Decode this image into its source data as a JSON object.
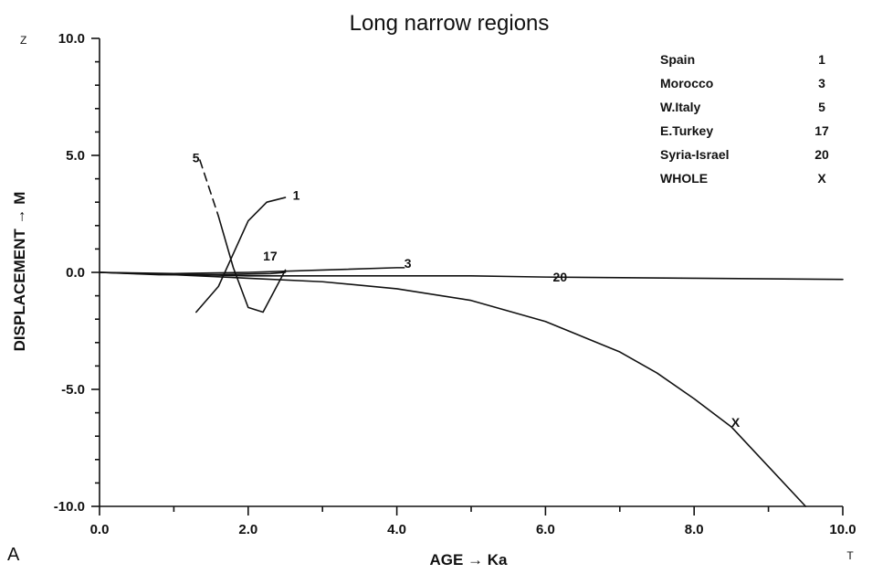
{
  "panel_label": "A",
  "corner_labels": {
    "y": "Z",
    "x": "T"
  },
  "chart_data": {
    "type": "line",
    "title": "Long narrow regions",
    "xlabel": "AGE → Ka",
    "ylabel": "DISPLACEMENT → M",
    "xlim": [
      0,
      10
    ],
    "ylim": [
      -10,
      10
    ],
    "x_ticks": [
      0,
      2,
      4,
      6,
      8,
      10
    ],
    "x_tick_labels": [
      "0.0",
      "2.0",
      "4.0",
      "6.0",
      "8.0",
      "10.0"
    ],
    "y_ticks": [
      -10,
      -5,
      0,
      5,
      10
    ],
    "y_tick_labels": [
      "-10.0",
      "-5.0",
      "0.0",
      "5.0",
      "10.0"
    ],
    "grid": false,
    "legend": {
      "placement": "top-right",
      "entries": [
        {
          "name": "Spain",
          "key": "1"
        },
        {
          "name": "Morocco",
          "key": "3"
        },
        {
          "name": "W.Italy",
          "key": "5"
        },
        {
          "name": "E.Turkey",
          "key": "17"
        },
        {
          "name": "Syria-Israel",
          "key": "20"
        },
        {
          "name": "WHOLE",
          "key": "X"
        }
      ]
    },
    "series": [
      {
        "label": "1",
        "dashed_until": 0,
        "points": [
          [
            1.3,
            -1.7
          ],
          [
            1.6,
            -0.6
          ],
          [
            1.8,
            0.8
          ],
          [
            2.0,
            2.2
          ],
          [
            2.25,
            3.0
          ],
          [
            2.5,
            3.2
          ]
        ]
      },
      {
        "label": "3",
        "points": [
          [
            0,
            0
          ],
          [
            1,
            -0.05
          ],
          [
            2,
            0.0
          ],
          [
            3,
            0.1
          ],
          [
            4,
            0.2
          ],
          [
            4.1,
            0.2
          ]
        ]
      },
      {
        "label": "5",
        "dashed_until": 1,
        "points": [
          [
            1.35,
            4.8
          ],
          [
            1.6,
            2.4
          ],
          [
            1.8,
            0.2
          ],
          [
            2.0,
            -1.5
          ],
          [
            2.2,
            -1.7
          ],
          [
            2.5,
            0.1
          ]
        ]
      },
      {
        "label": "17",
        "points": [
          [
            0,
            0
          ],
          [
            0.8,
            -0.1
          ],
          [
            1.6,
            -0.1
          ],
          [
            2.3,
            -0.05
          ],
          [
            2.5,
            0.0
          ]
        ]
      },
      {
        "label": "20",
        "points": [
          [
            0,
            0
          ],
          [
            2,
            -0.15
          ],
          [
            4,
            -0.15
          ],
          [
            5,
            -0.15
          ],
          [
            6,
            -0.2
          ],
          [
            8,
            -0.25
          ],
          [
            10,
            -0.3
          ]
        ]
      },
      {
        "label": "X",
        "points": [
          [
            0,
            0
          ],
          [
            1,
            -0.1
          ],
          [
            2,
            -0.25
          ],
          [
            3,
            -0.4
          ],
          [
            4,
            -0.7
          ],
          [
            5,
            -1.2
          ],
          [
            6,
            -2.1
          ],
          [
            7,
            -3.4
          ],
          [
            7.5,
            -4.3
          ],
          [
            8,
            -5.4
          ],
          [
            8.5,
            -6.6
          ],
          [
            9,
            -8.3
          ],
          [
            9.5,
            -10.0
          ]
        ]
      }
    ],
    "curve_labels": [
      {
        "text": "1",
        "x": 2.6,
        "y": 3.3
      },
      {
        "text": "3",
        "x": 4.1,
        "y": 0.4
      },
      {
        "text": "5",
        "x": 1.25,
        "y": 4.9
      },
      {
        "text": "17",
        "x": 2.2,
        "y": 0.7
      },
      {
        "text": "20",
        "x": 6.1,
        "y": -0.2
      },
      {
        "text": "X",
        "x": 8.5,
        "y": -6.4
      }
    ]
  }
}
